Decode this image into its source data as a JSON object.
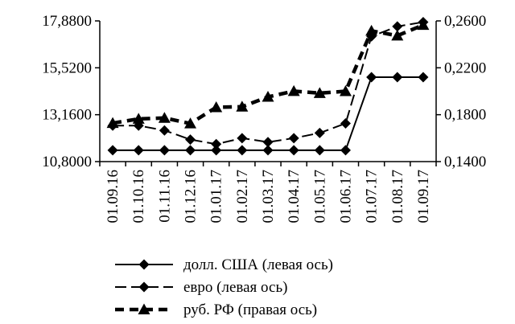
{
  "chart_data": {
    "type": "line",
    "categories": [
      "01.09.16",
      "01.10.16",
      "01.11.16",
      "01.12.16",
      "01.01.17",
      "01.02.17",
      "01.03.17",
      "01.04.17",
      "01.05.17",
      "01.06.17",
      "01.07.17",
      "01.08.17",
      "01.09.17"
    ],
    "left_axis": {
      "ylim": [
        10.8,
        17.88
      ],
      "ticks": [
        "10,8000",
        "13,1600",
        "15,5200",
        "17,8800"
      ]
    },
    "right_axis": {
      "ylim": [
        0.14,
        0.26
      ],
      "ticks": [
        "0,1400",
        "0,1800",
        "0,2200",
        "0,2600"
      ]
    },
    "series": [
      {
        "name": "долл. США (левая ось)",
        "axis": "left",
        "style": "solid",
        "marker": "diamond",
        "color": "#000000",
        "values": [
          11.37,
          11.37,
          11.37,
          11.37,
          11.37,
          11.37,
          11.37,
          11.37,
          11.37,
          11.37,
          15.05,
          15.05,
          15.05
        ]
      },
      {
        "name": "евро (левая ось)",
        "axis": "left",
        "style": "dashed",
        "marker": "diamond",
        "color": "#000000",
        "values": [
          12.61,
          12.61,
          12.37,
          11.91,
          11.68,
          11.98,
          11.78,
          11.98,
          12.24,
          12.72,
          17.1,
          17.6,
          17.82
        ]
      },
      {
        "name": "руб. РФ (правая ось)",
        "axis": "right",
        "style": "heavy-dashed",
        "marker": "triangle",
        "color": "#000000",
        "values": [
          0.1728,
          0.1764,
          0.1772,
          0.1725,
          0.1863,
          0.1868,
          0.1952,
          0.2001,
          0.1984,
          0.2,
          0.2515,
          0.2474,
          0.2565
        ]
      }
    ],
    "grid": false,
    "legend_position": "bottom"
  }
}
